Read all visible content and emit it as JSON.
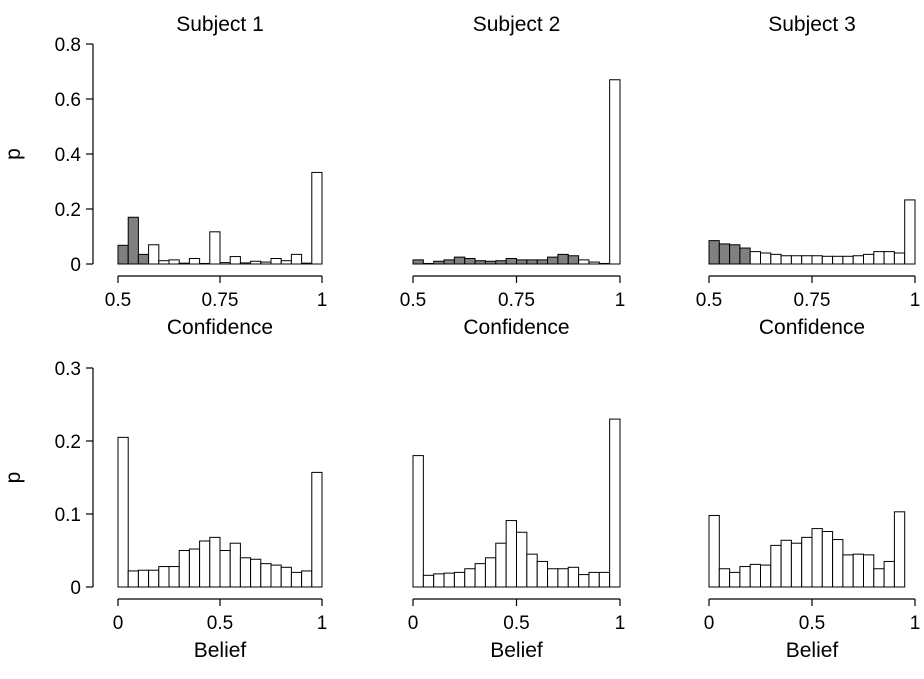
{
  "chart_data": [
    {
      "type": "bar",
      "title": "Subject 1",
      "xlabel": "Confidence",
      "ylabel": "p",
      "xlim": [
        0.5,
        1
      ],
      "ylim": [
        0,
        0.8
      ],
      "xticks": [
        0.5,
        0.75,
        1
      ],
      "xtick_labels": [
        "0.5",
        "0.75",
        "1"
      ],
      "yticks": [
        0,
        0.2,
        0.4,
        0.6,
        0.8
      ],
      "ytick_labels": [
        "0",
        "0.2",
        "0.4",
        "0.6",
        "0.8"
      ],
      "bin_width": 0.025,
      "bin_starts": [
        0.5,
        0.525,
        0.55,
        0.575,
        0.6,
        0.625,
        0.65,
        0.675,
        0.7,
        0.725,
        0.75,
        0.775,
        0.8,
        0.825,
        0.85,
        0.875,
        0.9,
        0.925,
        0.95,
        0.975
      ],
      "values": [
        0.068,
        0.17,
        0.035,
        0.07,
        0.012,
        0.015,
        0.003,
        0.02,
        0.002,
        0.117,
        0.005,
        0.027,
        0.004,
        0.01,
        0.007,
        0.02,
        0.012,
        0.035,
        0.003,
        0.333
      ],
      "colors": [
        "#808080",
        "#808080",
        "#808080",
        "#ffffff",
        "#ffffff",
        "#ffffff",
        "#ffffff",
        "#ffffff",
        "#ffffff",
        "#ffffff",
        "#ffffff",
        "#ffffff",
        "#ffffff",
        "#ffffff",
        "#ffffff",
        "#ffffff",
        "#ffffff",
        "#ffffff",
        "#ffffff",
        "#ffffff"
      ]
    },
    {
      "type": "bar",
      "title": "Subject 2",
      "xlabel": "Confidence",
      "ylabel": "",
      "xlim": [
        0.5,
        1
      ],
      "ylim": [
        0,
        0.8
      ],
      "xticks": [
        0.5,
        0.75,
        1
      ],
      "xtick_labels": [
        "0.5",
        "0.75",
        "1"
      ],
      "yticks": [],
      "ytick_labels": [],
      "bin_width": 0.025,
      "bin_starts": [
        0.5,
        0.525,
        0.55,
        0.575,
        0.6,
        0.625,
        0.65,
        0.675,
        0.7,
        0.725,
        0.75,
        0.775,
        0.8,
        0.825,
        0.85,
        0.875,
        0.9,
        0.925,
        0.95,
        0.975
      ],
      "values": [
        0.015,
        0.002,
        0.01,
        0.015,
        0.025,
        0.02,
        0.012,
        0.01,
        0.012,
        0.02,
        0.015,
        0.015,
        0.015,
        0.025,
        0.035,
        0.03,
        0.015,
        0.007,
        0.002,
        0.67
      ],
      "colors": [
        "#808080",
        "#808080",
        "#808080",
        "#808080",
        "#808080",
        "#808080",
        "#808080",
        "#808080",
        "#808080",
        "#808080",
        "#808080",
        "#808080",
        "#808080",
        "#808080",
        "#808080",
        "#808080",
        "#ffffff",
        "#ffffff",
        "#808080",
        "#ffffff"
      ]
    },
    {
      "type": "bar",
      "title": "Subject 3",
      "xlabel": "Confidence",
      "ylabel": "",
      "xlim": [
        0.5,
        1
      ],
      "ylim": [
        0,
        0.8
      ],
      "xticks": [
        0.5,
        0.75,
        1
      ],
      "xtick_labels": [
        "0.5",
        "0.75",
        "1"
      ],
      "yticks": [],
      "ytick_labels": [],
      "bin_width": 0.025,
      "bin_starts": [
        0.5,
        0.525,
        0.55,
        0.575,
        0.6,
        0.625,
        0.65,
        0.675,
        0.7,
        0.725,
        0.75,
        0.775,
        0.8,
        0.825,
        0.85,
        0.875,
        0.9,
        0.925,
        0.95,
        0.975
      ],
      "values": [
        0.085,
        0.073,
        0.07,
        0.058,
        0.045,
        0.04,
        0.035,
        0.03,
        0.03,
        0.03,
        0.03,
        0.028,
        0.028,
        0.028,
        0.03,
        0.035,
        0.045,
        0.045,
        0.04,
        0.233
      ],
      "colors": [
        "#808080",
        "#808080",
        "#808080",
        "#808080",
        "#ffffff",
        "#ffffff",
        "#ffffff",
        "#ffffff",
        "#ffffff",
        "#ffffff",
        "#ffffff",
        "#ffffff",
        "#ffffff",
        "#ffffff",
        "#ffffff",
        "#ffffff",
        "#ffffff",
        "#ffffff",
        "#ffffff",
        "#ffffff"
      ]
    },
    {
      "type": "bar",
      "title": "",
      "xlabel": "Belief",
      "ylabel": "p",
      "xlim": [
        0,
        1
      ],
      "ylim": [
        0,
        0.3
      ],
      "xticks": [
        0,
        0.5,
        1
      ],
      "xtick_labels": [
        "0",
        "0.5",
        "1"
      ],
      "yticks": [
        0,
        0.1,
        0.2,
        0.3
      ],
      "ytick_labels": [
        "0",
        "0.1",
        "0.2",
        "0.3"
      ],
      "bin_width": 0.05,
      "bin_starts": [
        0,
        0.05,
        0.1,
        0.15,
        0.2,
        0.25,
        0.3,
        0.35,
        0.4,
        0.45,
        0.5,
        0.55,
        0.6,
        0.65,
        0.7,
        0.75,
        0.8,
        0.85,
        0.9,
        0.95
      ],
      "values": [
        0.205,
        0.022,
        0.023,
        0.023,
        0.028,
        0.028,
        0.05,
        0.052,
        0.063,
        0.068,
        0.05,
        0.06,
        0.04,
        0.038,
        0.032,
        0.03,
        0.027,
        0.02,
        0.022,
        0.157
      ],
      "colors": [
        "#ffffff",
        "#ffffff",
        "#ffffff",
        "#ffffff",
        "#ffffff",
        "#ffffff",
        "#ffffff",
        "#ffffff",
        "#ffffff",
        "#ffffff",
        "#ffffff",
        "#ffffff",
        "#ffffff",
        "#ffffff",
        "#ffffff",
        "#ffffff",
        "#ffffff",
        "#ffffff",
        "#ffffff",
        "#ffffff"
      ]
    },
    {
      "type": "bar",
      "title": "",
      "xlabel": "Belief",
      "ylabel": "",
      "xlim": [
        0,
        1
      ],
      "ylim": [
        0,
        0.3
      ],
      "xticks": [
        0,
        0.5,
        1
      ],
      "xtick_labels": [
        "0",
        "0.5",
        "1"
      ],
      "yticks": [],
      "ytick_labels": [],
      "bin_width": 0.05,
      "bin_starts": [
        0,
        0.05,
        0.1,
        0.15,
        0.2,
        0.25,
        0.3,
        0.35,
        0.4,
        0.45,
        0.5,
        0.55,
        0.6,
        0.65,
        0.7,
        0.75,
        0.8,
        0.85,
        0.9,
        0.95
      ],
      "values": [
        0.18,
        0.016,
        0.018,
        0.019,
        0.02,
        0.025,
        0.032,
        0.04,
        0.06,
        0.091,
        0.075,
        0.045,
        0.035,
        0.025,
        0.025,
        0.027,
        0.017,
        0.02,
        0.02,
        0.23
      ],
      "colors": [
        "#ffffff",
        "#ffffff",
        "#ffffff",
        "#ffffff",
        "#ffffff",
        "#ffffff",
        "#ffffff",
        "#ffffff",
        "#ffffff",
        "#ffffff",
        "#ffffff",
        "#ffffff",
        "#ffffff",
        "#ffffff",
        "#ffffff",
        "#ffffff",
        "#ffffff",
        "#ffffff",
        "#ffffff",
        "#ffffff"
      ]
    },
    {
      "type": "bar",
      "title": "",
      "xlabel": "Belief",
      "ylabel": "",
      "xlim": [
        0,
        1
      ],
      "ylim": [
        0,
        0.3
      ],
      "xticks": [
        0,
        0.5,
        1
      ],
      "xtick_labels": [
        "0",
        "0.5",
        "1"
      ],
      "yticks": [],
      "ytick_labels": [],
      "bin_width": 0.05,
      "bin_starts": [
        0,
        0.05,
        0.1,
        0.15,
        0.2,
        0.25,
        0.3,
        0.35,
        0.4,
        0.45,
        0.5,
        0.55,
        0.6,
        0.65,
        0.7,
        0.75,
        0.8,
        0.85,
        0.9,
        0.95
      ],
      "values": [
        0.098,
        0.025,
        0.02,
        0.028,
        0.031,
        0.03,
        0.057,
        0.064,
        0.06,
        0.068,
        0.08,
        0.076,
        0.065,
        0.044,
        0.045,
        0.044,
        0.025,
        0.035,
        0.103,
        0.0
      ],
      "colors": [
        "#ffffff",
        "#ffffff",
        "#ffffff",
        "#ffffff",
        "#ffffff",
        "#ffffff",
        "#ffffff",
        "#ffffff",
        "#ffffff",
        "#ffffff",
        "#ffffff",
        "#ffffff",
        "#ffffff",
        "#ffffff",
        "#ffffff",
        "#ffffff",
        "#ffffff",
        "#ffffff",
        "#ffffff",
        "#ffffff"
      ]
    }
  ]
}
